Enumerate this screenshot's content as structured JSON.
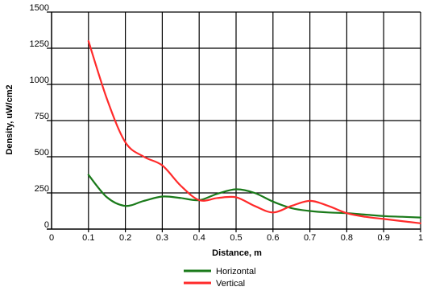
{
  "chart_data": {
    "type": "line",
    "title": "",
    "xlabel": "Distance, m",
    "ylabel": "Density, uW/cm2",
    "xlim": [
      0,
      1
    ],
    "ylim": [
      0,
      1500
    ],
    "x_ticks": [
      0,
      0.1,
      0.2,
      0.3,
      0.4,
      0.5,
      0.6,
      0.7,
      0.8,
      0.9,
      1
    ],
    "x_tick_labels": [
      "0",
      "0.1",
      "0.2",
      "0.3",
      "0.4",
      "0.5",
      "0.6",
      "0.7",
      "0.8",
      "0.9",
      "1"
    ],
    "y_ticks": [
      0,
      250,
      500,
      750,
      1000,
      1250,
      1500
    ],
    "y_tick_labels": [
      "0",
      "250",
      "500",
      "750",
      "1000",
      "1250",
      "1500"
    ],
    "grid": true,
    "legend_position": "bottom-center",
    "series": [
      {
        "name": "Horizontal",
        "color": "#1a7a1a",
        "x": [
          0.1,
          0.15,
          0.2,
          0.25,
          0.3,
          0.35,
          0.4,
          0.45,
          0.5,
          0.55,
          0.6,
          0.65,
          0.7,
          0.75,
          0.8,
          0.85,
          0.9,
          0.95,
          1.0
        ],
        "y": [
          375,
          220,
          160,
          195,
          225,
          215,
          200,
          245,
          275,
          250,
          190,
          145,
          125,
          115,
          110,
          100,
          90,
          85,
          80
        ]
      },
      {
        "name": "Vertical",
        "color": "#ff2a2a",
        "x": [
          0.1,
          0.15,
          0.2,
          0.25,
          0.3,
          0.35,
          0.4,
          0.45,
          0.5,
          0.55,
          0.6,
          0.65,
          0.7,
          0.75,
          0.8,
          0.85,
          0.9,
          0.95,
          1.0
        ],
        "y": [
          1300,
          900,
          600,
          500,
          440,
          300,
          200,
          215,
          220,
          160,
          115,
          160,
          195,
          160,
          110,
          85,
          70,
          55,
          40
        ]
      }
    ]
  }
}
